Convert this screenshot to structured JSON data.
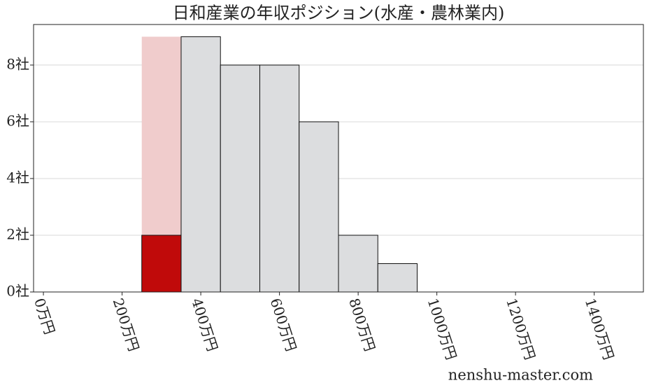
{
  "chart_data": {
    "type": "histogram",
    "title": "日和産業の年収ポジション(水産・農林業内)",
    "watermark": "nenshu-master.com",
    "bins": [
      250,
      350,
      450,
      550,
      650,
      750,
      850,
      950
    ],
    "series": [
      {
        "values": [
          9,
          9,
          8,
          8,
          6,
          2,
          1
        ],
        "colors": [
          "#f0cccc",
          "#dcdddf",
          "#dcdddf",
          "#dcdddf",
          "#dcdddf",
          "#dcdddf",
          "#dcdddf"
        ],
        "edge_colors": [
          "none",
          "#111111",
          "#111111",
          "#111111",
          "#111111",
          "#111111",
          "#111111"
        ]
      },
      {
        "values": [
          2,
          null,
          null,
          null,
          null,
          null,
          null
        ],
        "color": "#c00a0a",
        "edge_color": "#111111"
      }
    ],
    "xlim": [
      -25,
      1525
    ],
    "xticks": [
      {
        "value": 0,
        "label": "0万円"
      },
      {
        "value": 200,
        "label": "200万円"
      },
      {
        "value": 400,
        "label": "400万円"
      },
      {
        "value": 600,
        "label": "600万円"
      },
      {
        "value": 800,
        "label": "800万円"
      },
      {
        "value": 1000,
        "label": "1000万円"
      },
      {
        "value": 1200,
        "label": "1200万円"
      },
      {
        "value": 1400,
        "label": "1400万円"
      }
    ],
    "ylim": [
      0,
      9.43
    ],
    "yticks": [
      {
        "value": 0,
        "label": "0社"
      },
      {
        "value": 2,
        "label": "2社"
      },
      {
        "value": 4,
        "label": "4社"
      },
      {
        "value": 6,
        "label": "6社"
      },
      {
        "value": 8,
        "label": "8社"
      }
    ],
    "grid": true
  }
}
